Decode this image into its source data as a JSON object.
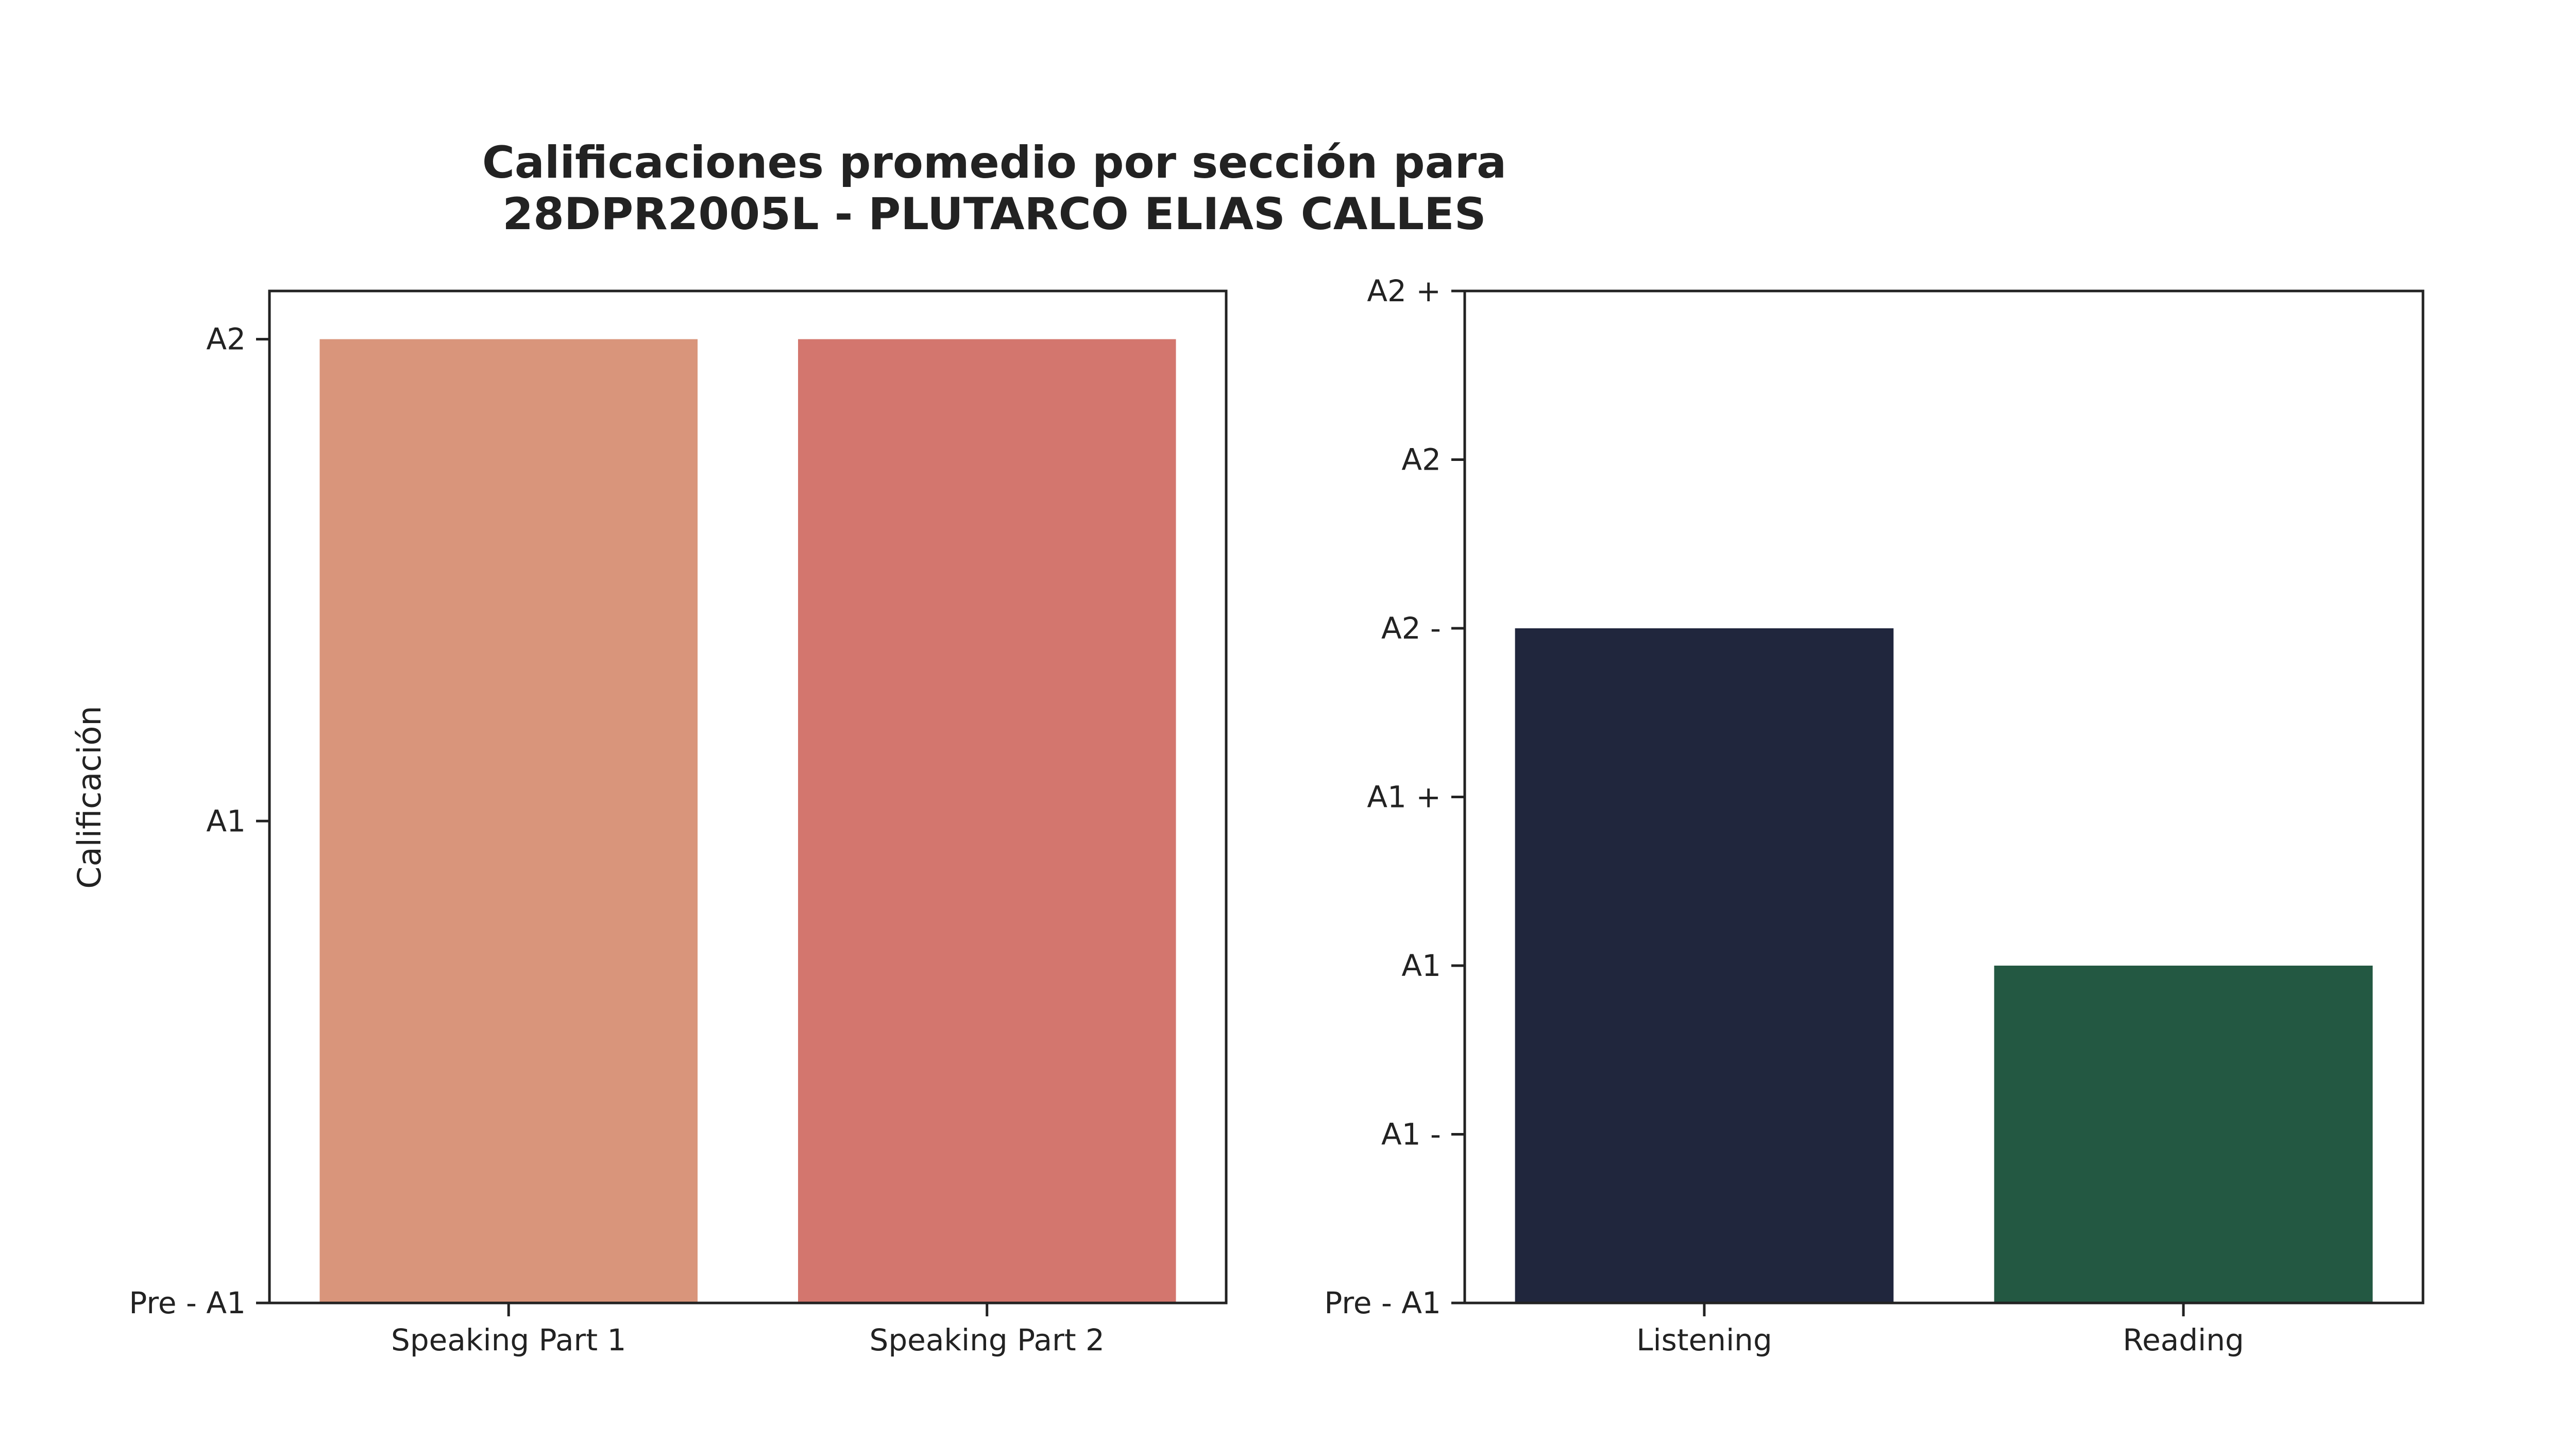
{
  "title": "Calificaciones promedio por sección para\n28DPR2005L - PLUTARCO ELIAS CALLES",
  "chart_data": [
    {
      "type": "bar",
      "ylabel": "Calificación",
      "xlabel": "",
      "categories": [
        "Speaking Part 1",
        "Speaking Part 2"
      ],
      "values": [
        2,
        2
      ],
      "colors": [
        "#d9957b",
        "#d3766e"
      ],
      "ylim": [
        0,
        2.1
      ],
      "yticks": [
        0,
        1,
        2
      ],
      "ytick_labels": [
        "Pre - A1",
        "A1",
        "A2"
      ],
      "grid": false
    },
    {
      "type": "bar",
      "ylabel": "",
      "xlabel": "",
      "categories": [
        "Listening",
        "Reading"
      ],
      "values": [
        4,
        2
      ],
      "colors": [
        "#20263d",
        "#235842"
      ],
      "ylim": [
        0,
        6
      ],
      "yticks": [
        0,
        1,
        2,
        3,
        4,
        5,
        6
      ],
      "ytick_labels": [
        "Pre - A1",
        "A1 -",
        "A1",
        "A1 +",
        "A2 -",
        "A2",
        "A2 +"
      ],
      "grid": false
    }
  ]
}
